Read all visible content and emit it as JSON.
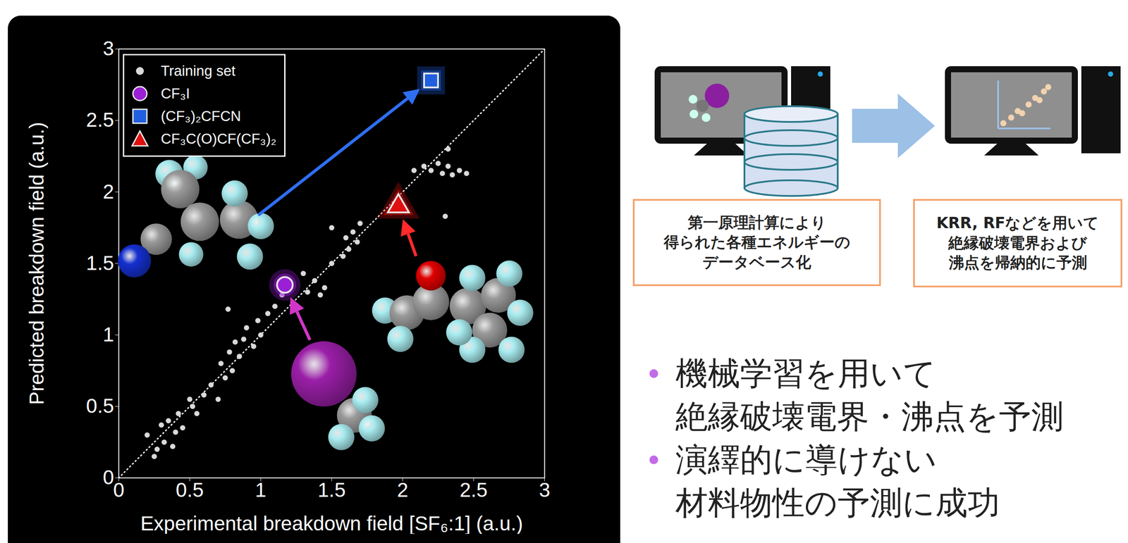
{
  "chart_data": {
    "type": "scatter",
    "x_label": "Experimental breakdown field [SF₆:1] (a.u.)",
    "y_label": "Predicted breakdown field (a.u.)",
    "xlim": [
      0,
      3
    ],
    "ylim": [
      0,
      3
    ],
    "xticks": [
      0,
      0.5,
      1,
      1.5,
      2,
      2.5,
      3
    ],
    "yticks": [
      0,
      0.5,
      1,
      1.5,
      2,
      2.5,
      3
    ],
    "legend": "top-left",
    "series": [
      {
        "name": "Training set",
        "color": "#d9d9d9",
        "marker": "circle",
        "x": [
          0.2,
          0.25,
          0.27,
          0.3,
          0.32,
          0.35,
          0.38,
          0.4,
          0.42,
          0.45,
          0.5,
          0.52,
          0.55,
          0.6,
          0.65,
          0.7,
          0.72,
          0.75,
          0.78,
          0.8,
          0.82,
          0.85,
          0.88,
          0.9,
          0.95,
          0.98,
          1.0,
          1.05,
          1.1,
          0.77,
          1.15,
          1.25,
          1.3,
          1.33,
          1.38,
          1.42,
          1.45,
          1.5,
          1.5,
          1.58,
          1.6,
          1.62,
          1.65,
          1.68,
          1.7,
          2.08,
          2.15,
          2.2,
          2.25,
          2.28,
          2.32,
          2.35,
          2.4,
          2.45,
          2.32,
          2.3
        ],
        "values": [
          0.3,
          0.15,
          0.2,
          0.37,
          0.25,
          0.4,
          0.22,
          0.32,
          0.45,
          0.35,
          0.55,
          0.5,
          0.45,
          0.58,
          0.65,
          0.55,
          0.8,
          0.7,
          0.88,
          0.75,
          0.95,
          0.85,
          0.97,
          1.05,
          0.92,
          1.1,
          1.0,
          1.15,
          1.2,
          1.18,
          1.28,
          1.2,
          1.43,
          1.3,
          1.38,
          1.28,
          1.33,
          1.75,
          1.5,
          1.55,
          1.68,
          1.6,
          1.72,
          1.65,
          1.78,
          2.15,
          2.18,
          2.15,
          2.2,
          2.13,
          2.18,
          2.12,
          2.15,
          2.13,
          2.3,
          1.83
        ]
      },
      {
        "name": "CF₃I",
        "color": "#9b1fd6",
        "marker": "circle",
        "x": [
          1.17
        ],
        "values": [
          1.35
        ]
      },
      {
        "name": "(CF₃)₂CFCN",
        "color": "#1f5fe0",
        "marker": "square",
        "x": [
          2.2
        ],
        "values": [
          2.78
        ]
      },
      {
        "name": "CF₃C(O)CF(CF₃)₂",
        "color": "#e01010",
        "marker": "triangle",
        "x": [
          1.97
        ],
        "values": [
          1.9
        ]
      }
    ]
  },
  "diagram": {
    "steps": [
      {
        "lines": [
          "第一原理計算により",
          "得られた各種エネルギーの",
          "データベース化"
        ]
      },
      {
        "lines": [
          "KRR, RFなどを用いて",
          "絶縁破壊電界および",
          "沸点を帰納的に予測"
        ]
      }
    ],
    "bullets": [
      [
        "機械学習を用いて",
        "絶縁破壊電界・沸点を予測"
      ],
      [
        "演繹的に導けない",
        "材料物性の予測に成功"
      ]
    ]
  }
}
